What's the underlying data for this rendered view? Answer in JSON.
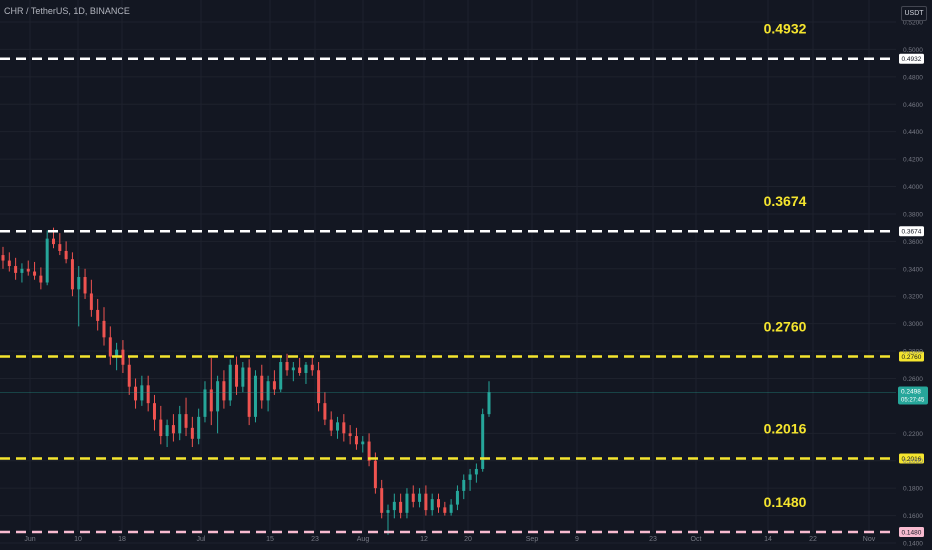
{
  "header": {
    "symbol": "CHR / TetherUS, 1D, BINANCE",
    "currency": "USDT"
  },
  "colors": {
    "background": "#131722",
    "grid": "#1e222d",
    "up": "#26a69a",
    "down": "#ef5350",
    "white_line": "#ffffff",
    "yellow_line": "#f5e52e",
    "pink_line": "#f8bbd0",
    "axis_text": "#787b86"
  },
  "y_axis": {
    "ticks": [
      "0.5200",
      "0.5000",
      "0.4800",
      "0.4600",
      "0.4400",
      "0.4200",
      "0.4000",
      "0.3800",
      "0.3600",
      "0.3400",
      "0.3200",
      "0.3000",
      "0.2800",
      "0.2600",
      "0.2200",
      "0.2000",
      "0.1800",
      "0.1600",
      "0.1400"
    ]
  },
  "x_axis": {
    "ticks": [
      "Jun",
      "10",
      "18",
      "Jul",
      "15",
      "23",
      "Aug",
      "12",
      "20",
      "Sep",
      "9",
      "23",
      "Oct",
      "14",
      "22",
      "Nov"
    ]
  },
  "levels": [
    {
      "label": "0.4932",
      "value": 0.4932,
      "style": "white"
    },
    {
      "label": "0.3674",
      "value": 0.3674,
      "style": "white"
    },
    {
      "label": "0.2760",
      "value": 0.276,
      "style": "yellow"
    },
    {
      "label": "0.2016",
      "value": 0.2016,
      "style": "yellow"
    },
    {
      "label": "0.1480",
      "value": 0.148,
      "style": "pink"
    }
  ],
  "current_price": {
    "value": "0.2498",
    "countdown": "05:27:45"
  },
  "chart_data": {
    "type": "candlestick",
    "ylim": [
      0.14,
      0.52
    ],
    "candles": [
      [
        0.35,
        0.356,
        0.34,
        0.346
      ],
      [
        0.346,
        0.352,
        0.338,
        0.342
      ],
      [
        0.342,
        0.348,
        0.332,
        0.337
      ],
      [
        0.337,
        0.344,
        0.33,
        0.34
      ],
      [
        0.34,
        0.346,
        0.335,
        0.338
      ],
      [
        0.338,
        0.345,
        0.332,
        0.335
      ],
      [
        0.335,
        0.341,
        0.325,
        0.33
      ],
      [
        0.33,
        0.368,
        0.328,
        0.362
      ],
      [
        0.362,
        0.37,
        0.355,
        0.358
      ],
      [
        0.358,
        0.366,
        0.35,
        0.353
      ],
      [
        0.353,
        0.36,
        0.344,
        0.347
      ],
      [
        0.347,
        0.352,
        0.32,
        0.325
      ],
      [
        0.325,
        0.342,
        0.298,
        0.334
      ],
      [
        0.334,
        0.34,
        0.318,
        0.322
      ],
      [
        0.322,
        0.332,
        0.305,
        0.31
      ],
      [
        0.31,
        0.318,
        0.295,
        0.302
      ],
      [
        0.302,
        0.312,
        0.284,
        0.29
      ],
      [
        0.29,
        0.298,
        0.27,
        0.276
      ],
      [
        0.276,
        0.286,
        0.266,
        0.281
      ],
      [
        0.281,
        0.288,
        0.264,
        0.27
      ],
      [
        0.27,
        0.276,
        0.248,
        0.254
      ],
      [
        0.254,
        0.26,
        0.238,
        0.244
      ],
      [
        0.244,
        0.262,
        0.24,
        0.255
      ],
      [
        0.255,
        0.262,
        0.236,
        0.242
      ],
      [
        0.242,
        0.248,
        0.222,
        0.23
      ],
      [
        0.23,
        0.24,
        0.212,
        0.218
      ],
      [
        0.218,
        0.23,
        0.21,
        0.226
      ],
      [
        0.226,
        0.234,
        0.214,
        0.22
      ],
      [
        0.22,
        0.24,
        0.215,
        0.234
      ],
      [
        0.234,
        0.246,
        0.218,
        0.224
      ],
      [
        0.224,
        0.232,
        0.21,
        0.216
      ],
      [
        0.216,
        0.238,
        0.212,
        0.232
      ],
      [
        0.232,
        0.258,
        0.228,
        0.252
      ],
      [
        0.252,
        0.275,
        0.226,
        0.236
      ],
      [
        0.236,
        0.262,
        0.22,
        0.258
      ],
      [
        0.258,
        0.266,
        0.238,
        0.244
      ],
      [
        0.244,
        0.274,
        0.24,
        0.27
      ],
      [
        0.27,
        0.276,
        0.248,
        0.254
      ],
      [
        0.254,
        0.272,
        0.25,
        0.268
      ],
      [
        0.268,
        0.274,
        0.226,
        0.232
      ],
      [
        0.232,
        0.266,
        0.228,
        0.262
      ],
      [
        0.262,
        0.27,
        0.238,
        0.244
      ],
      [
        0.244,
        0.262,
        0.236,
        0.258
      ],
      [
        0.258,
        0.266,
        0.248,
        0.252
      ],
      [
        0.252,
        0.276,
        0.25,
        0.272
      ],
      [
        0.272,
        0.278,
        0.262,
        0.266
      ],
      [
        0.266,
        0.272,
        0.258,
        0.268
      ],
      [
        0.268,
        0.275,
        0.262,
        0.264
      ],
      [
        0.264,
        0.272,
        0.256,
        0.27
      ],
      [
        0.27,
        0.276,
        0.262,
        0.266
      ],
      [
        0.266,
        0.272,
        0.236,
        0.242
      ],
      [
        0.242,
        0.25,
        0.226,
        0.23
      ],
      [
        0.23,
        0.236,
        0.218,
        0.222
      ],
      [
        0.222,
        0.232,
        0.216,
        0.228
      ],
      [
        0.228,
        0.234,
        0.214,
        0.22
      ],
      [
        0.22,
        0.226,
        0.212,
        0.218
      ],
      [
        0.218,
        0.224,
        0.208,
        0.212
      ],
      [
        0.212,
        0.218,
        0.206,
        0.214
      ],
      [
        0.214,
        0.22,
        0.196,
        0.2
      ],
      [
        0.2,
        0.206,
        0.176,
        0.18
      ],
      [
        0.18,
        0.186,
        0.158,
        0.162
      ],
      [
        0.162,
        0.168,
        0.146,
        0.164
      ],
      [
        0.164,
        0.176,
        0.158,
        0.17
      ],
      [
        0.17,
        0.176,
        0.158,
        0.162
      ],
      [
        0.162,
        0.18,
        0.158,
        0.176
      ],
      [
        0.176,
        0.182,
        0.166,
        0.17
      ],
      [
        0.17,
        0.18,
        0.166,
        0.176
      ],
      [
        0.176,
        0.182,
        0.16,
        0.164
      ],
      [
        0.164,
        0.176,
        0.16,
        0.172
      ],
      [
        0.172,
        0.176,
        0.162,
        0.166
      ],
      [
        0.166,
        0.17,
        0.16,
        0.162
      ],
      [
        0.162,
        0.172,
        0.16,
        0.168
      ],
      [
        0.168,
        0.182,
        0.164,
        0.178
      ],
      [
        0.178,
        0.19,
        0.172,
        0.186
      ],
      [
        0.186,
        0.194,
        0.178,
        0.19
      ],
      [
        0.19,
        0.198,
        0.184,
        0.194
      ],
      [
        0.194,
        0.238,
        0.192,
        0.234
      ],
      [
        0.234,
        0.258,
        0.232,
        0.25
      ]
    ]
  }
}
